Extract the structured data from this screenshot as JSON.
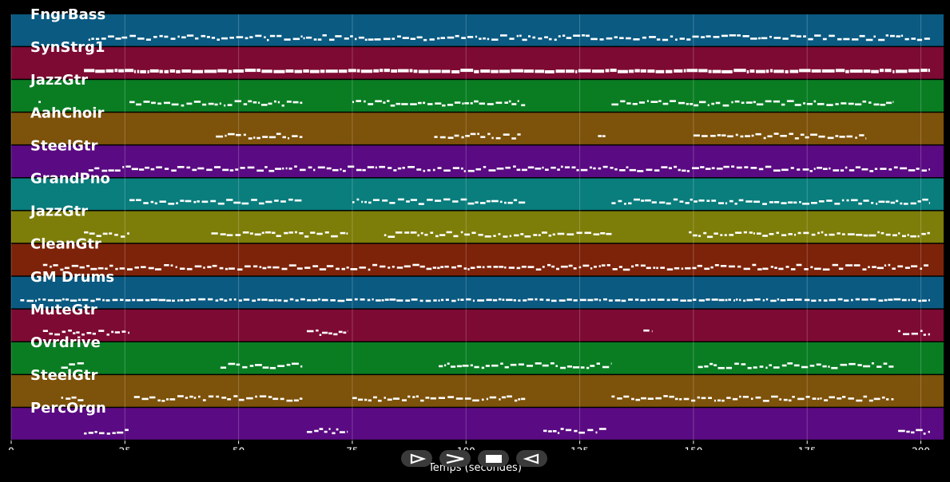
{
  "tracks": [
    {
      "name": "FngrBass",
      "color": "#0a5a82"
    },
    {
      "name": "SynStrg1",
      "color": "#7d0a32"
    },
    {
      "name": "JazzGtr",
      "color": "#0a7d23"
    },
    {
      "name": "AahChoir",
      "color": "#7d520a"
    },
    {
      "name": "SteelGtr",
      "color": "#5a0a82"
    },
    {
      "name": "GrandPno",
      "color": "#0a7d7d"
    },
    {
      "name": "JazzGtr",
      "color": "#7d7d0a"
    },
    {
      "name": "CleanGtr",
      "color": "#7d230a"
    },
    {
      "name": "GM Drums",
      "color": "#0a5a82"
    },
    {
      "name": "MuteGtr",
      "color": "#7d0a32"
    },
    {
      "name": "Ovrdrive",
      "color": "#0a7d23"
    },
    {
      "name": "SteelGtr",
      "color": "#7d520a"
    },
    {
      "name": "PercOrgn",
      "color": "#5a0a82"
    }
  ],
  "axis": {
    "title": "Temps (secondes)",
    "xlim": [
      0,
      205
    ],
    "ticks": [
      0,
      25,
      50,
      75,
      100,
      125,
      150,
      175,
      200
    ]
  },
  "transport": [
    {
      "name": "play-icon"
    },
    {
      "name": "forward-icon"
    },
    {
      "name": "stop-icon"
    },
    {
      "name": "rewind-icon"
    }
  ],
  "note_segments": [
    [
      [
        17,
        202
      ]
    ],
    [
      [
        16,
        202
      ]
    ],
    [
      [
        6,
        6.5
      ],
      [
        26,
        64
      ],
      [
        75,
        113
      ],
      [
        132,
        194
      ]
    ],
    [
      [
        45,
        64
      ],
      [
        93,
        112
      ],
      [
        129,
        131
      ],
      [
        150,
        188
      ]
    ],
    [
      [
        17,
        202
      ]
    ],
    [
      [
        26,
        64
      ],
      [
        75,
        113
      ],
      [
        132,
        202
      ]
    ],
    [
      [
        16,
        26
      ],
      [
        44,
        74
      ],
      [
        82,
        132
      ],
      [
        149,
        202
      ]
    ],
    [
      [
        7,
        202
      ]
    ],
    [
      [
        2,
        202
      ]
    ],
    [
      [
        7,
        26
      ],
      [
        65,
        74
      ],
      [
        139,
        141
      ],
      [
        195,
        202
      ]
    ],
    [
      [
        11,
        16
      ],
      [
        46,
        64
      ],
      [
        94,
        132
      ],
      [
        151,
        194
      ]
    ],
    [
      [
        11,
        16
      ],
      [
        27,
        64
      ],
      [
        75,
        113
      ],
      [
        132,
        194
      ]
    ],
    [
      [
        16,
        26
      ],
      [
        65,
        74
      ],
      [
        117,
        131
      ],
      [
        195,
        202
      ]
    ]
  ]
}
